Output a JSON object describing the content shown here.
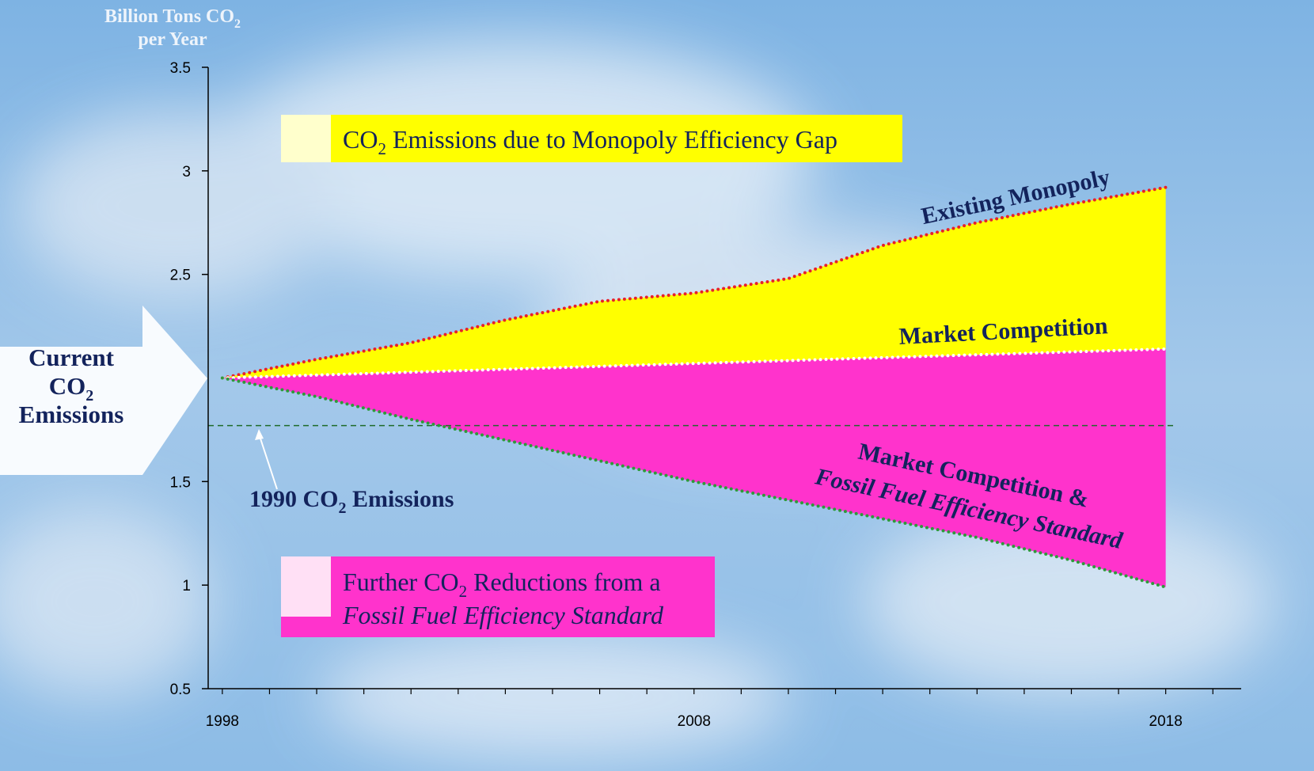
{
  "chart_data": {
    "type": "line",
    "y_label": {
      "line1": "Billion Tons CO",
      "sub": "2",
      "line2": "per Year"
    },
    "x": [
      1998,
      2000,
      2002,
      2004,
      2006,
      2008,
      2010,
      2012,
      2014,
      2016,
      2018
    ],
    "series": [
      {
        "name": "Existing Monopoly",
        "color": "#e8202a",
        "fill": "#ffff00",
        "values": [
          2.0,
          2.09,
          2.17,
          2.28,
          2.37,
          2.41,
          2.48,
          2.64,
          2.75,
          2.84,
          2.92
        ]
      },
      {
        "name": "Market Competition",
        "color": "#ffffff",
        "fill": "#ff33cc",
        "values": [
          2.0,
          2.014,
          2.028,
          2.042,
          2.056,
          2.07,
          2.084,
          2.098,
          2.112,
          2.126,
          2.14
        ]
      },
      {
        "name": "Market Competition & Fossil Fuel Efficiency Standard",
        "color": "#2e9a3a",
        "values": [
          2.0,
          1.91,
          1.8,
          1.7,
          1.6,
          1.5,
          1.41,
          1.32,
          1.23,
          1.12,
          0.99
        ]
      }
    ],
    "labels": {
      "monopoly": "Existing Monopoly",
      "market": "Market Competition",
      "standard1": "Market Competition &",
      "standard2": "Fossil Fuel Efficiency Standard"
    },
    "reference": {
      "value": 1.77,
      "label": {
        "pre": "1990 CO",
        "sub": "2",
        "post": " Emissions"
      }
    },
    "current": {
      "line1": "Current",
      "line2": "CO",
      "sub": "2",
      "line3": "Emissions"
    },
    "legend": [
      {
        "pre": "CO",
        "sub": "2",
        "post": " Emissions due to Monopoly Efficiency Gap"
      },
      {
        "pre": "Further CO",
        "sub": "2",
        "post": " Reductions from a",
        "line2": "Fossil Fuel Efficiency Standard"
      }
    ],
    "xlim": [
      1997.7,
      2019.6
    ],
    "ylim": [
      0.5,
      3.5
    ],
    "yticks": [
      0.5,
      1,
      1.5,
      2.5,
      3,
      3.5
    ],
    "xticks": [
      1998,
      2008,
      2018
    ],
    "x_minor_ticks": [
      1998,
      1999,
      2000,
      2001,
      2002,
      2003,
      2004,
      2005,
      2006,
      2007,
      2008,
      2009,
      2010,
      2011,
      2012,
      2013,
      2014,
      2015,
      2016,
      2017,
      2018,
      2019
    ]
  }
}
